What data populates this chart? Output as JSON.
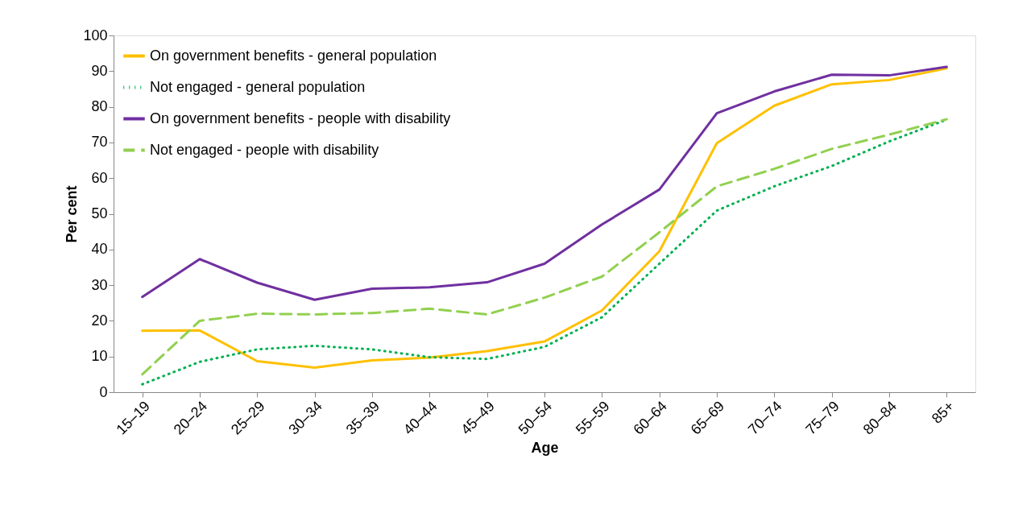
{
  "chart_data": {
    "type": "line",
    "xlabel": "Age",
    "ylabel": "Per cent",
    "categories": [
      "15–19",
      "20–24",
      "25–29",
      "30–34",
      "35–39",
      "40–44",
      "45–49",
      "50–54",
      "55–59",
      "60–64",
      "65–69",
      "70–74",
      "75–79",
      "80–84",
      "85+"
    ],
    "ylim": [
      0,
      100
    ],
    "yticks": [
      0,
      10,
      20,
      30,
      40,
      50,
      60,
      70,
      80,
      90,
      100
    ],
    "grid": false,
    "legend": "top left",
    "marker": "none",
    "series": [
      {
        "name": "On government benefits - general population",
        "color": "#ffc000",
        "line_style": "solid",
        "values": [
          17.2,
          17.3,
          8.7,
          6.9,
          8.9,
          9.7,
          11.5,
          14.2,
          22.9,
          39.5,
          69.8,
          80.3,
          86.3,
          87.5,
          90.8
        ]
      },
      {
        "name": "Not engaged - general population",
        "color": "#00b050",
        "line_style": "dotted",
        "values": [
          2.2,
          8.5,
          12,
          13,
          12,
          9.8,
          9.3,
          12.7,
          21,
          36,
          50.9,
          57.7,
          63.4,
          70.3,
          76.4
        ]
      },
      {
        "name": "On government benefits - people with disability",
        "color": "#7030a0",
        "line_style": "solid",
        "values": [
          26.7,
          37.3,
          30.7,
          25.9,
          29,
          29.4,
          30.8,
          36,
          47,
          56.8,
          78.2,
          84.3,
          89,
          88.8,
          91.2
        ]
      },
      {
        "name": "Not engaged - people with disability",
        "color": "#92d050",
        "line_style": "dashed",
        "values": [
          5,
          20,
          22,
          21.8,
          22.2,
          23.4,
          21.8,
          26.5,
          32.4,
          44.8,
          57.7,
          62.6,
          68.2,
          72.2,
          76.5
        ]
      }
    ]
  }
}
